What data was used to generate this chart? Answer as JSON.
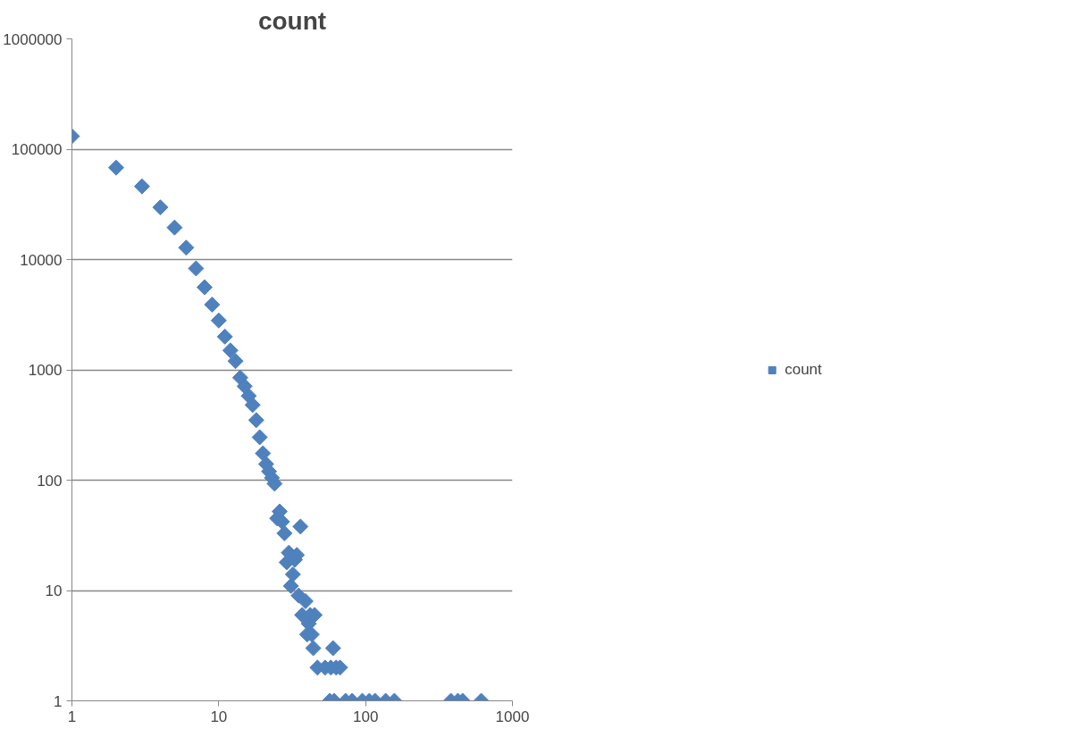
{
  "chart_data": {
    "type": "scatter",
    "title": "count",
    "log": "xy",
    "marker": "diamond",
    "grid": "y",
    "legend": "right",
    "xlim": [
      1,
      1000
    ],
    "xticks": [
      1,
      10,
      100,
      1000
    ],
    "ylim": [
      1,
      1000000
    ],
    "yticks": [
      1,
      10,
      100,
      1000,
      10000,
      100000,
      1000000
    ],
    "series": [
      {
        "name": "count",
        "color": "#4f81bd",
        "x": [
          1,
          2,
          3,
          4,
          5,
          6,
          7,
          8,
          9,
          10,
          11,
          12,
          13,
          14,
          15,
          16,
          17,
          18,
          19,
          20,
          21,
          22,
          23,
          24,
          25,
          26,
          27,
          28,
          29,
          30,
          31,
          32,
          33,
          34,
          35,
          36,
          37,
          39,
          40,
          41,
          42,
          43,
          44,
          45,
          47,
          53,
          58,
          60,
          63,
          67,
          57,
          61,
          73,
          81,
          95,
          106,
          116,
          137,
          157,
          381,
          425,
          458,
          613
        ],
        "values": [
          131000,
          68000,
          46000,
          29700,
          19500,
          12800,
          8300,
          5600,
          3900,
          2800,
          2000,
          1500,
          1200,
          850,
          710,
          580,
          480,
          350,
          245,
          175,
          140,
          120,
          105,
          93,
          45,
          52,
          42,
          33,
          18,
          22,
          11,
          14,
          19,
          21,
          9,
          38,
          6,
          8,
          4,
          5,
          6,
          4,
          3,
          6,
          2,
          2,
          2,
          3,
          2,
          2,
          1,
          1,
          1,
          1,
          1,
          1,
          1,
          1,
          1,
          1,
          1,
          1,
          1
        ]
      }
    ]
  }
}
